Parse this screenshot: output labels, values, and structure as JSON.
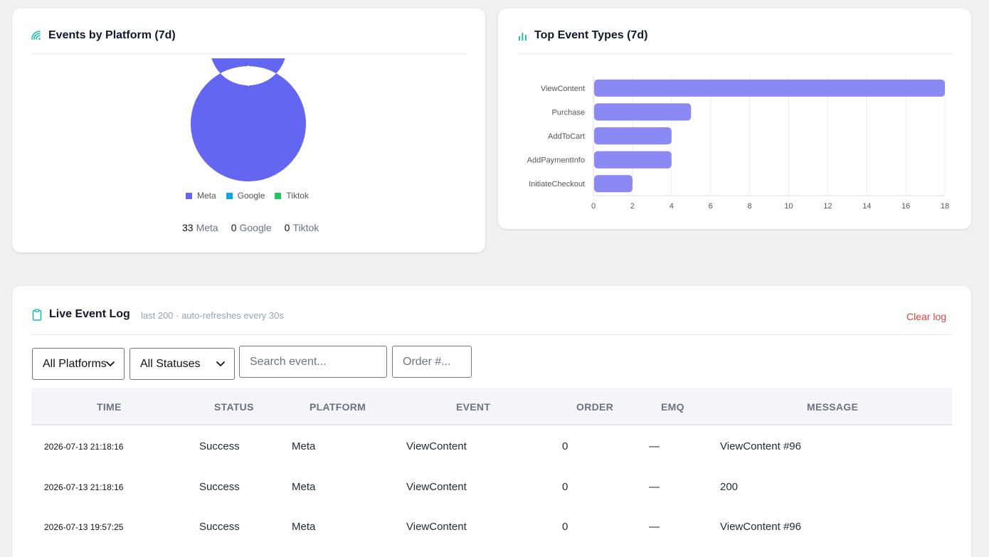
{
  "platform_card": {
    "title": "Events by Platform (7d)",
    "legend": [
      {
        "label": "Meta",
        "color": "#6366f1"
      },
      {
        "label": "Google",
        "color": "#0ea5e9"
      },
      {
        "label": "Tiktok",
        "color": "#22c55e"
      }
    ],
    "totals": [
      {
        "count": "33",
        "label": "Meta"
      },
      {
        "count": "0",
        "label": "Google"
      },
      {
        "count": "0",
        "label": "Tiktok"
      }
    ]
  },
  "event_types_card": {
    "title": "Top Event Types (7d)"
  },
  "chart_data": [
    {
      "type": "pie",
      "variant": "donut",
      "categories": [
        "Meta",
        "Google",
        "Tiktok"
      ],
      "values": [
        33,
        0,
        0
      ],
      "colors": [
        "#6366f1",
        "#0ea5e9",
        "#22c55e"
      ],
      "legend": "bottom"
    },
    {
      "type": "bar",
      "orientation": "horizontal",
      "categories": [
        "ViewContent",
        "Purchase",
        "AddToCart",
        "AddPaymentInfo",
        "InitiateCheckout"
      ],
      "values": [
        18,
        5,
        4,
        4,
        2
      ],
      "xlim": [
        0,
        18
      ],
      "xticks": [
        0,
        2,
        4,
        6,
        8,
        10,
        12,
        14,
        16,
        18
      ],
      "grid": true,
      "color": "#8b89f3"
    }
  ],
  "log": {
    "title": "Live Event Log",
    "subtitle": "last 200 · auto-refreshes every 30s",
    "clear_label": "Clear log",
    "filters": {
      "platform_selected": "All Platforms",
      "status_selected": "All Statuses",
      "search_placeholder": "Search event...",
      "order_placeholder": "Order #..."
    },
    "columns": [
      "TIME",
      "STATUS",
      "PLATFORM",
      "EVENT",
      "ORDER",
      "EMQ",
      "MESSAGE"
    ],
    "rows": [
      {
        "time": "2026-07-13 21:18:16",
        "status": "Success",
        "platform": "Meta",
        "event": "ViewContent",
        "order": "0",
        "emq": "—",
        "message": "ViewContent #96"
      },
      {
        "time": "2026-07-13 21:18:16",
        "status": "Success",
        "platform": "Meta",
        "event": "ViewContent",
        "order": "0",
        "emq": "—",
        "message": "200"
      },
      {
        "time": "2026-07-13 19:57:25",
        "status": "Success",
        "platform": "Meta",
        "event": "ViewContent",
        "order": "0",
        "emq": "—",
        "message": "ViewContent #96"
      }
    ]
  }
}
